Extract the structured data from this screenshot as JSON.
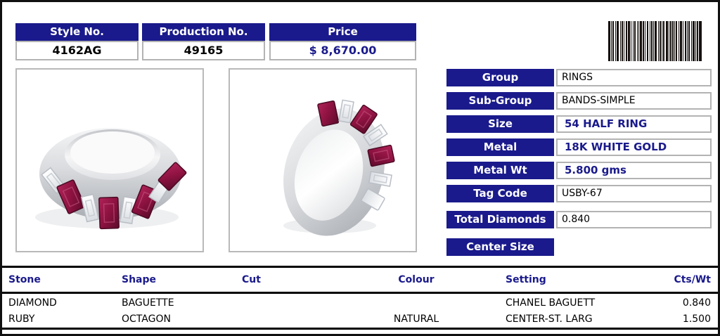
{
  "theme": {
    "navy": "#1a1a8c",
    "box_border_gray": "#b3b3b3",
    "ruby_color": "#8c1240",
    "diamond_color": "#f2f4f7"
  },
  "top_fields": [
    {
      "label": "Style No.",
      "value": "4162AG"
    },
    {
      "label": "Production No.",
      "value": "49165"
    },
    {
      "label": "Price",
      "value": "$ 8,670.00"
    }
  ],
  "details": [
    {
      "label": "Group",
      "value": "RINGS"
    },
    {
      "label": "Sub-Group",
      "value": "BANDS-SIMPLE"
    },
    {
      "label": "Size",
      "value": "54 HALF RING"
    },
    {
      "label": "Metal",
      "value": "18K WHITE GOLD"
    },
    {
      "label": "Metal Wt",
      "value": "5.800 gms"
    },
    {
      "label": "Tag Code",
      "value": "USBY-67"
    },
    {
      "label": "Total Diamonds",
      "value": "0.840"
    },
    {
      "label": "Center Size",
      "value": ""
    }
  ],
  "stones_table": {
    "headers": [
      "Stone",
      "Shape",
      "Cut",
      "Colour",
      "Setting",
      "Cts/Wt"
    ],
    "rows": [
      {
        "stone": "DIAMOND",
        "shape": "BAGUETTE",
        "cut": "",
        "colour": "",
        "setting": "CHANEL BAGUETT",
        "cts_wt": "0.840"
      },
      {
        "stone": "RUBY",
        "shape": "OCTAGON",
        "cut": "",
        "colour": "NATURAL",
        "setting": "CENTER-ST. LARG",
        "cts_wt": "1.500"
      }
    ]
  },
  "images": {
    "left_caption": "ring-side-view",
    "right_caption": "ring-standing-view"
  },
  "barcode": {
    "pattern": [
      3,
      1,
      1,
      1,
      2,
      2,
      1,
      1,
      3,
      2,
      1,
      1,
      2,
      1,
      1,
      2,
      2,
      1,
      3,
      1,
      1,
      2,
      1,
      1,
      2,
      2,
      1,
      1,
      1,
      1,
      3,
      1,
      2,
      1,
      1,
      2,
      2,
      2,
      1,
      1,
      2,
      1,
      1,
      1,
      3,
      2,
      1,
      1,
      2,
      1,
      1,
      1,
      2,
      2,
      3,
      1,
      1,
      1,
      2,
      1,
      2,
      1,
      1,
      1,
      2,
      2,
      1,
      1,
      3,
      1,
      1,
      2,
      2,
      1,
      1,
      1,
      2,
      2,
      1,
      1,
      3,
      1,
      1,
      1,
      2,
      1,
      4
    ]
  }
}
